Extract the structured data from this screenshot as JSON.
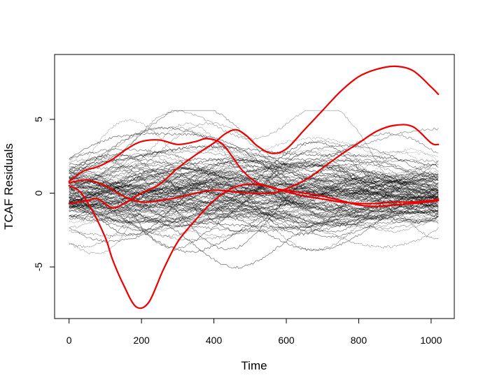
{
  "chart_data": {
    "type": "line",
    "title": "",
    "xlabel": "Time",
    "ylabel": "TCAF Residuals",
    "xlim": [
      -40,
      1064
    ],
    "ylim": [
      -8.5,
      9.4
    ],
    "x_ticks": [
      0,
      200,
      400,
      600,
      800,
      1000
    ],
    "y_ticks": [
      -5,
      0,
      5
    ],
    "grid": false,
    "legend": "none",
    "background_curve_color": "#000000",
    "highlight_color": "#ee0000",
    "background_curve_count": 120,
    "highlight_series": [
      {
        "x": [
          0,
          30,
          60,
          100,
          120,
          150,
          185,
          220,
          260,
          300,
          350,
          400,
          440,
          470,
          500,
          540,
          570,
          600,
          650,
          700,
          750,
          800,
          850,
          900,
          950,
          990,
          1020
        ],
        "y": [
          0.5,
          0.1,
          -1.0,
          -3.0,
          -4.5,
          -6.2,
          -7.7,
          -7.4,
          -5.2,
          -3.3,
          -1.8,
          -0.5,
          0.2,
          0.5,
          0.6,
          0.5,
          0.3,
          0.2,
          0.0,
          -0.2,
          -0.5,
          -0.8,
          -0.9,
          -0.8,
          -0.7,
          -0.6,
          -0.5
        ]
      },
      {
        "x": [
          0,
          40,
          80,
          120,
          160,
          200,
          250,
          300,
          350,
          380,
          420,
          450,
          480,
          520,
          560,
          600,
          650,
          700,
          750,
          800,
          850,
          900,
          950,
          1000,
          1020
        ],
        "y": [
          0.8,
          1.5,
          1.8,
          2.3,
          3.0,
          3.5,
          3.6,
          3.3,
          3.5,
          3.7,
          3.4,
          2.5,
          1.5,
          0.7,
          0.4,
          0.1,
          -0.2,
          -0.4,
          -0.6,
          -0.7,
          -0.7,
          -0.6,
          -0.6,
          -0.5,
          -0.4
        ]
      },
      {
        "x": [
          0,
          50,
          80,
          120,
          160,
          200,
          250,
          300,
          350,
          400,
          430,
          460,
          490,
          520,
          560,
          600,
          650,
          700,
          750,
          800,
          850,
          900,
          950,
          1000,
          1020
        ],
        "y": [
          -0.7,
          -0.5,
          -0.4,
          -1.0,
          -0.6,
          0.0,
          0.6,
          1.7,
          2.6,
          3.4,
          4.0,
          4.3,
          3.9,
          3.2,
          2.7,
          3.0,
          4.3,
          5.6,
          6.9,
          7.9,
          8.4,
          8.6,
          8.3,
          7.2,
          6.7
        ]
      },
      {
        "x": [
          0,
          50,
          100,
          150,
          200,
          250,
          300,
          350,
          400,
          450,
          500,
          550,
          580,
          620,
          660,
          700,
          750,
          800,
          850,
          900,
          950,
          1000,
          1020
        ],
        "y": [
          0.7,
          0.9,
          0.5,
          -0.2,
          -0.6,
          -0.5,
          -0.3,
          0.0,
          0.2,
          0.1,
          0.0,
          0.0,
          0.1,
          0.5,
          1.0,
          1.7,
          2.6,
          3.4,
          4.2,
          4.6,
          4.5,
          3.4,
          3.3
        ]
      }
    ]
  }
}
